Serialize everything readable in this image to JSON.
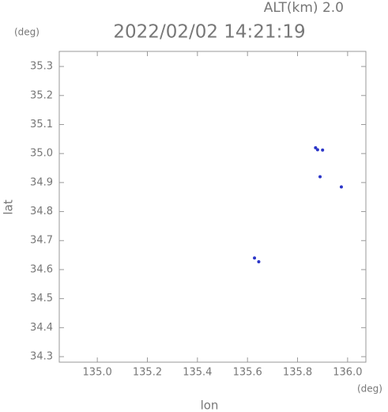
{
  "chart_data": {
    "type": "scatter",
    "title": "2022/02/02 14:21:19",
    "annotation": "ALT(km) 2.0",
    "x_unit": "(deg)",
    "y_unit": "(deg)",
    "x_label": "lon",
    "y_label": "lat",
    "color": "#2b35c8",
    "x": [
      135.872,
      135.88,
      135.9,
      135.975,
      135.628,
      135.645,
      135.89
    ],
    "y": [
      35.02,
      35.013,
      35.012,
      34.885,
      34.64,
      34.627,
      34.92
    ],
    "xlim": [
      134.848,
      136.073
    ],
    "ylim": [
      34.281,
      35.352
    ],
    "xticks": [
      {
        "value": 135,
        "label": "135.0"
      },
      135.2,
      135.4,
      135.6,
      135.8,
      {
        "value": 136,
        "label": "136.0"
      }
    ],
    "yticks": [
      34.3,
      34.4,
      34.5,
      34.6,
      34.7,
      34.8,
      34.9,
      {
        "value": 35,
        "label": "35.0"
      },
      35.1,
      35.2,
      35.3
    ]
  }
}
